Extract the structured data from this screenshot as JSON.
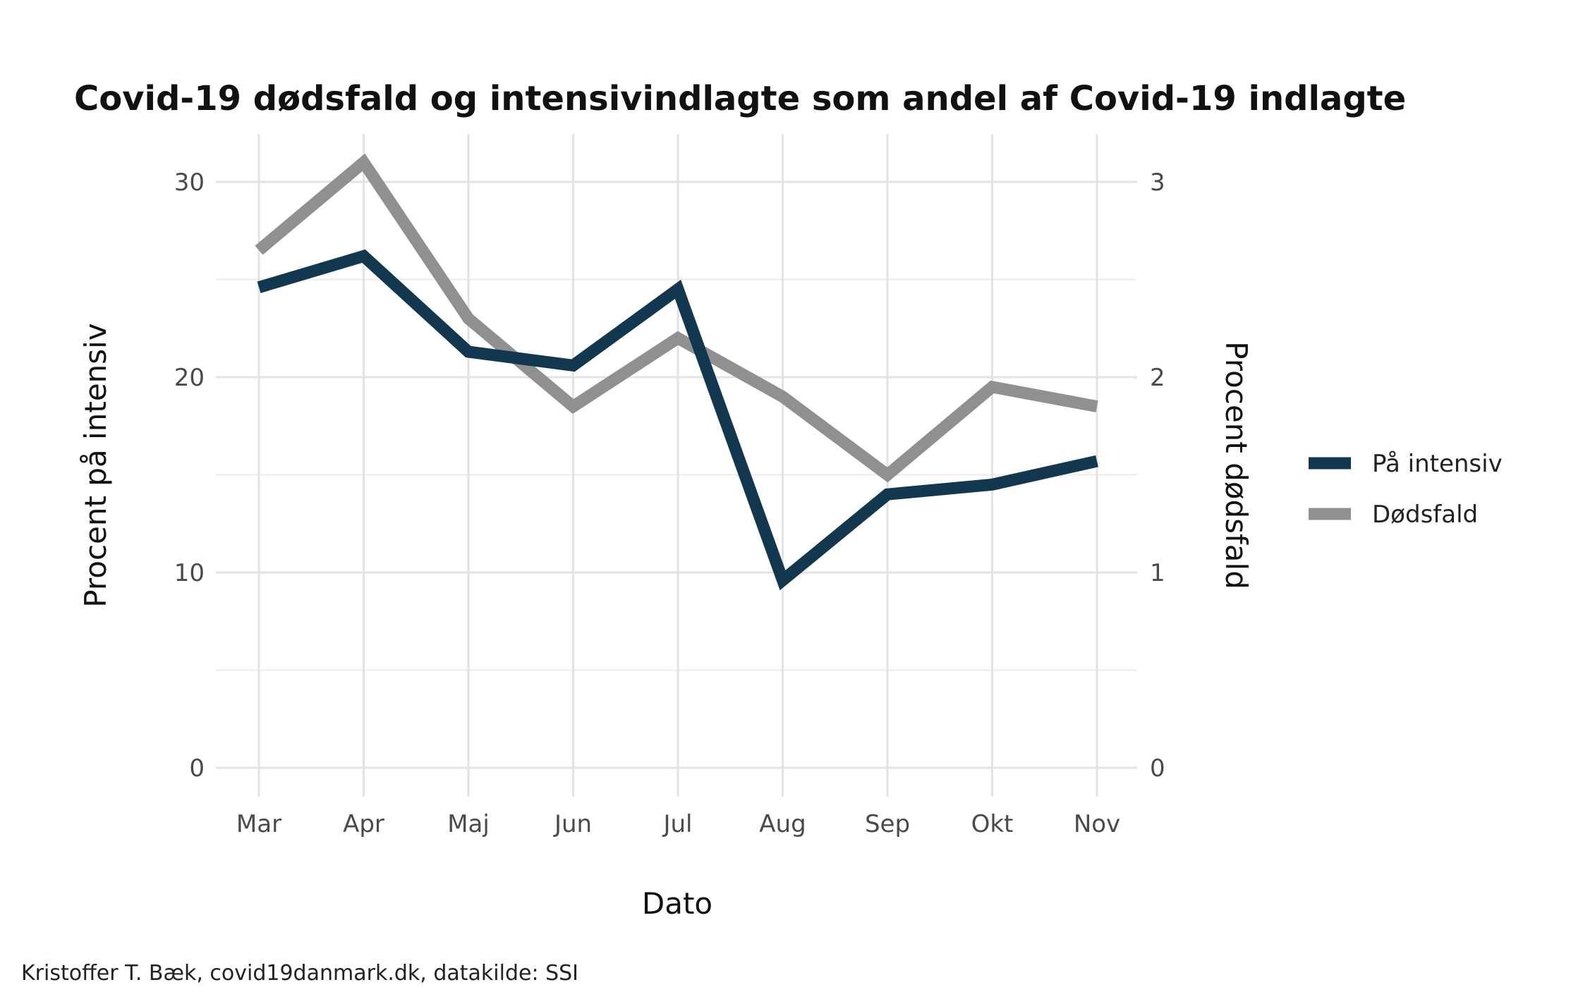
{
  "chart_data": {
    "type": "line",
    "title": "Covid-19 dødsfald og intensivindlagte som andel af Covid-19 indlagte",
    "xlabel": "Dato",
    "ylabel": "Procent på intensiv",
    "ylabel_right": "Procent dødsfald",
    "caption": "Kristoffer T. Bæk, covid19danmark.dk, datakilde: SSI",
    "categories": [
      "Mar",
      "Apr",
      "Maj",
      "Jun",
      "Jul",
      "Aug",
      "Sep",
      "Okt",
      "Nov"
    ],
    "ylim": [
      0,
      32
    ],
    "yticks": [
      0,
      10,
      20,
      30
    ],
    "ylim_right": [
      0,
      3.2
    ],
    "yticks_right": [
      0,
      1,
      2,
      3
    ],
    "grid": true,
    "legend_position": "right",
    "series": [
      {
        "name": "På intensiv",
        "axis": "left",
        "color": "#12374f",
        "values": [
          24.6,
          26.2,
          21.3,
          20.6,
          24.5,
          9.6,
          14.0,
          14.5,
          15.7
        ]
      },
      {
        "name": "Dødsfald",
        "axis": "right",
        "color": "#909090",
        "values": [
          2.65,
          3.1,
          2.3,
          1.85,
          2.2,
          1.9,
          1.5,
          1.95,
          1.85
        ]
      }
    ]
  }
}
